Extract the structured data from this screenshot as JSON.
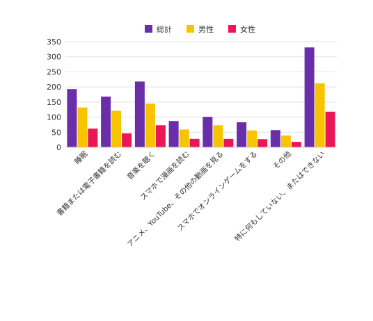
{
  "chart_data": {
    "type": "bar",
    "title": "",
    "xlabel": "",
    "ylabel": "",
    "ylim": [
      0,
      350
    ],
    "yticks": [
      "0",
      "50",
      "100",
      "150",
      "200",
      "250",
      "300",
      "350"
    ],
    "grid": true,
    "legend_position": "top-center",
    "categories": [
      "睡眠",
      "書籍または電子書籍を読む",
      "音楽を聴く",
      "スマホで漫画を読む",
      "アニメ、YouTube、その他の動画を見る",
      "スマホでオンラインゲームをする",
      "その他",
      "特に何もしていない、またはできない"
    ],
    "series": [
      {
        "name": "総計",
        "color": "#6a2fa8",
        "values": [
          193,
          168,
          218,
          87,
          101,
          83,
          57,
          331
        ]
      },
      {
        "name": "男性",
        "color": "#f8c400",
        "values": [
          132,
          121,
          145,
          59,
          73,
          56,
          39,
          212
        ]
      },
      {
        "name": "女性",
        "color": "#ea1657",
        "values": [
          62,
          46,
          73,
          28,
          28,
          27,
          18,
          118
        ]
      }
    ]
  }
}
